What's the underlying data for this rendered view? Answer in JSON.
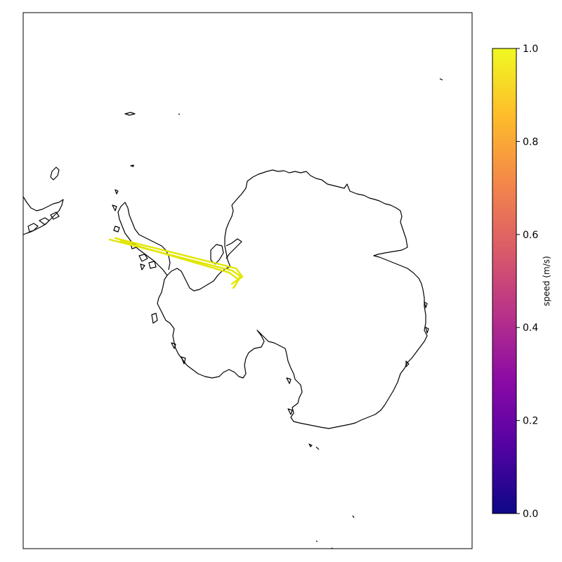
{
  "map": {
    "projection": "south-polar-stereographic",
    "features": [
      "antarctica-coastline",
      "antarctic-peninsula",
      "south-american-coastline",
      "sub-antarctic-islands"
    ],
    "track": {
      "description": "drift trajectory",
      "speed_color_value": 1.0,
      "color": "#e2e600"
    }
  },
  "colorbar": {
    "label": "speed (m/s)",
    "colormap": "plasma",
    "range": [
      0.0,
      1.0
    ],
    "ticks": [
      "0.0",
      "0.2",
      "0.4",
      "0.6",
      "0.8",
      "1.0"
    ],
    "colors": [
      "#0d0887",
      "#5302a3",
      "#8b0aa5",
      "#b83289",
      "#db5c68",
      "#f48849",
      "#febd2a",
      "#f0f921"
    ]
  }
}
